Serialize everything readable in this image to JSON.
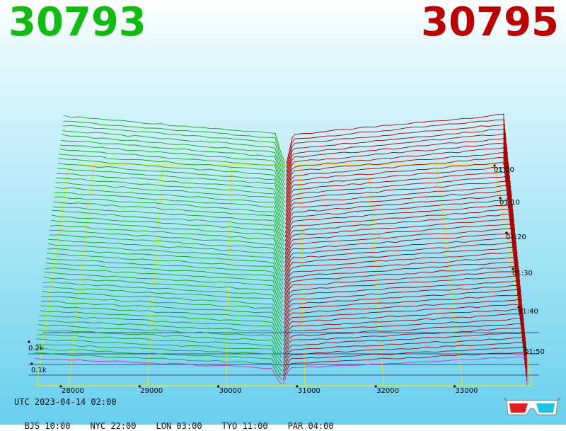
{
  "header": {
    "bid_price": "30793",
    "ask_price": "30795",
    "bid_color": "#11bb11",
    "ask_color": "#bb0000"
  },
  "footer": {
    "utc": "UTC 2023-04-14 02:00",
    "zones": [
      "BJS 10:00",
      "NYC 22:00",
      "LON 03:00",
      "TYO 11:00",
      "PAR 04:00"
    ]
  },
  "icons": {
    "glasses": "3d-glasses-icon"
  },
  "chart_data": {
    "type": "area",
    "price_axis": {
      "ticks": [
        28000,
        29000,
        30000,
        31000,
        32000,
        33000
      ],
      "labels": [
        "28000",
        "29000",
        "30000",
        "31000",
        "32000",
        "33000"
      ]
    },
    "volume_axis": {
      "ticks": [
        0.1,
        0.2
      ],
      "labels": [
        "0.1k",
        "0.2k"
      ]
    },
    "time_axis": {
      "labels": [
        "01:00",
        "01:10",
        "01:20",
        "01:30",
        "01:40",
        "01:50"
      ]
    },
    "series": [
      {
        "name": "bids",
        "color": "#11aa11"
      },
      {
        "name": "asks",
        "color": "#aa0000"
      }
    ],
    "grid": true
  }
}
